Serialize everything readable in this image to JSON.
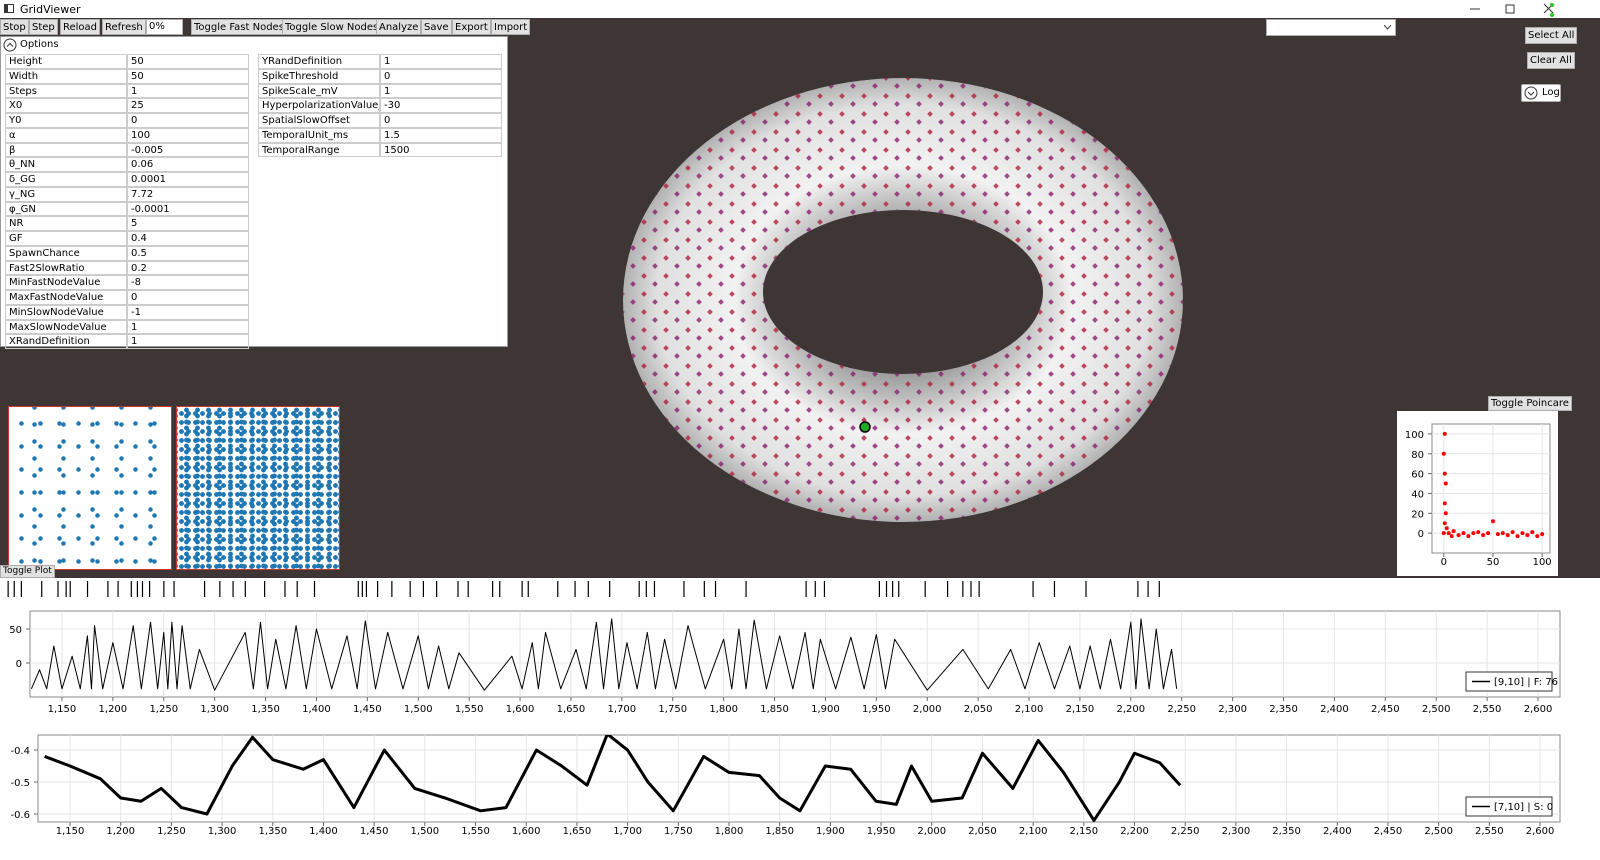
{
  "window": {
    "title": "GridViewer"
  },
  "toolbar": {
    "buttons": [
      "Stop",
      "Step",
      "Reload",
      "Refresh",
      "Toggle Fast Nodes",
      "Toggle Slow Nodes",
      "Analyze",
      "Save",
      "Export",
      "Import"
    ],
    "progress": "0%"
  },
  "side_buttons": [
    "Select All",
    "Clear All"
  ],
  "log_toggle": "Log",
  "options": {
    "header": "Options",
    "left_rows": [
      [
        "Height",
        "50"
      ],
      [
        "Width",
        "50"
      ],
      [
        "Steps",
        "1"
      ],
      [
        "X0",
        "25"
      ],
      [
        "Y0",
        "0"
      ],
      [
        "α",
        "100"
      ],
      [
        "β",
        "-0.005"
      ],
      [
        "θ_NN",
        "0.06"
      ],
      [
        "δ_GG",
        "0.0001"
      ],
      [
        "γ_NG",
        "7.72"
      ],
      [
        "φ_GN",
        "-0.0001"
      ],
      [
        "NR",
        "5"
      ],
      [
        "GF",
        "0.4"
      ],
      [
        "SpawnChance",
        "0.5"
      ],
      [
        "Fast2SlowRatio",
        "0.2"
      ],
      [
        "MinFastNodeValue",
        "-8"
      ],
      [
        "MaxFastNodeValue",
        "0"
      ],
      [
        "MinSlowNodeValue",
        "-1"
      ],
      [
        "MaxSlowNodeValue",
        "1"
      ],
      [
        "XRandDefinition",
        "1"
      ]
    ],
    "right_rows": [
      [
        "YRandDefinition",
        "1"
      ],
      [
        "SpikeThreshold",
        "0"
      ],
      [
        "SpikeScale_mV",
        "1"
      ],
      [
        "HyperpolarizationValue_mV",
        "-30"
      ],
      [
        "SpatialSlowOffset",
        "0"
      ],
      [
        "TemporalUnit_ms",
        "1.5"
      ],
      [
        "TemporalRange",
        "1500"
      ]
    ]
  },
  "toggle_poincare": "Toggle Poincare",
  "toggle_plot": "Toggle Plot",
  "chart_data": [
    {
      "type": "raster",
      "color": "#000000",
      "xlim": [
        1089,
        2661
      ],
      "x": [
        1097,
        1103,
        1110,
        1130,
        1146,
        1154,
        1158,
        1175,
        1195,
        1205,
        1218,
        1224,
        1229,
        1236,
        1250,
        1260,
        1290,
        1305,
        1318,
        1330,
        1349,
        1369,
        1381,
        1398,
        1441,
        1445,
        1449,
        1460,
        1474,
        1492,
        1505,
        1518,
        1539,
        1549,
        1573,
        1580,
        1602,
        1608,
        1637,
        1654,
        1667,
        1688,
        1717,
        1724,
        1732,
        1761,
        1781,
        1792,
        1822,
        1881,
        1890,
        1899,
        1953,
        1960,
        1966,
        1972,
        1998,
        2020,
        2035,
        2043,
        2051,
        2104,
        2125,
        2156,
        2207,
        2217,
        2228
      ]
    },
    {
      "type": "line",
      "legend": "lower right",
      "grid": true,
      "xlim": [
        1118.6,
        2621.6
      ],
      "ylim": [
        -50,
        76.5
      ],
      "yticks": [
        0,
        50
      ],
      "xticks": [
        {
          "value": 1150,
          "label": "1,150"
        },
        {
          "value": 1200,
          "label": "1,200"
        },
        {
          "value": 1250,
          "label": "1,250"
        },
        {
          "value": 1300,
          "label": "1,300"
        },
        {
          "value": 1350,
          "label": "1,350"
        },
        {
          "value": 1400,
          "label": "1,400"
        },
        {
          "value": 1450,
          "label": "1,450"
        },
        {
          "value": 1500,
          "label": "1,500"
        },
        {
          "value": 1550,
          "label": "1,550"
        },
        {
          "value": 1600,
          "label": "1,600"
        },
        {
          "value": 1650,
          "label": "1,650"
        },
        {
          "value": 1700,
          "label": "1,700"
        },
        {
          "value": 1750,
          "label": "1,750"
        },
        {
          "value": 1800,
          "label": "1,800"
        },
        {
          "value": 1850,
          "label": "1,850"
        },
        {
          "value": 1900,
          "label": "1,900"
        },
        {
          "value": 1950,
          "label": "1,950"
        },
        {
          "value": 2000,
          "label": "2,000"
        },
        {
          "value": 2050,
          "label": "2,050"
        },
        {
          "value": 2100,
          "label": "2,100"
        },
        {
          "value": 2150,
          "label": "2,150"
        },
        {
          "value": 2200,
          "label": "2,200"
        },
        {
          "value": 2250,
          "label": "2,250"
        },
        {
          "value": 2300,
          "label": "2,300"
        },
        {
          "value": 2350,
          "label": "2,350"
        },
        {
          "value": 2400,
          "label": "2,400"
        },
        {
          "value": 2450,
          "label": "2,450"
        },
        {
          "value": 2500,
          "label": "2,500"
        },
        {
          "value": 2550,
          "label": "2,550"
        },
        {
          "value": 2600,
          "label": "2,600"
        }
      ],
      "x": [
        1120,
        1128,
        1135,
        1142,
        1150,
        1160,
        1168,
        1175,
        1179,
        1182,
        1190,
        1200,
        1210,
        1220,
        1228,
        1237,
        1244,
        1250,
        1254,
        1258,
        1263,
        1268,
        1276,
        1285,
        1300,
        1330,
        1338,
        1345,
        1352,
        1360,
        1370,
        1380,
        1390,
        1400,
        1415,
        1430,
        1440,
        1448,
        1458,
        1470,
        1485,
        1500,
        1510,
        1520,
        1530,
        1540,
        1565,
        1592,
        1602,
        1612,
        1618,
        1625,
        1640,
        1655,
        1665,
        1675,
        1682,
        1690,
        1697,
        1705,
        1715,
        1725,
        1733,
        1742,
        1753,
        1765,
        1782,
        1800,
        1808,
        1815,
        1822,
        1830,
        1842,
        1855,
        1868,
        1880,
        1888,
        1895,
        1910,
        1925,
        1938,
        1950,
        1959,
        1968,
        2000,
        2035,
        2060,
        2082,
        2096,
        2110,
        2125,
        2140,
        2150,
        2160,
        2170,
        2180,
        2190,
        2200,
        2205,
        2210,
        2218,
        2225,
        2232,
        2240,
        2245
      ],
      "series": [
        {
          "name": "[9,10] | F: 76",
          "color": "#000000",
          "values": [
            -38,
            -10,
            -38,
            25,
            -38,
            10,
            -38,
            40,
            -38,
            55,
            -38,
            30,
            -38,
            55,
            -38,
            60,
            -38,
            45,
            -38,
            60,
            -38,
            55,
            -38,
            20,
            -40,
            45,
            -38,
            60,
            -38,
            35,
            -38,
            55,
            -38,
            50,
            -38,
            40,
            -38,
            62,
            -38,
            45,
            -38,
            40,
            -38,
            25,
            -38,
            15,
            -40,
            10,
            -38,
            30,
            -38,
            45,
            -38,
            20,
            -38,
            60,
            -38,
            65,
            -38,
            30,
            -38,
            45,
            -38,
            35,
            -38,
            55,
            -38,
            35,
            -38,
            50,
            -38,
            63,
            -38,
            40,
            -38,
            45,
            -38,
            35,
            -38,
            38,
            -38,
            42,
            -38,
            35,
            -40,
            20,
            -38,
            20,
            -38,
            30,
            -38,
            25,
            -38,
            25,
            -38,
            35,
            -38,
            60,
            -38,
            65,
            -38,
            50,
            -38,
            20,
            -38
          ]
        }
      ]
    },
    {
      "type": "line",
      "legend": "lower right",
      "grid": true,
      "xlim": [
        1118.4,
        2619.7
      ],
      "ylim": [
        -0.625,
        -0.353
      ],
      "yticks": [
        -0.6,
        -0.5,
        -0.4
      ],
      "xticks": [
        {
          "value": 1150,
          "label": "1,150"
        },
        {
          "value": 1200,
          "label": "1,200"
        },
        {
          "value": 1250,
          "label": "1,250"
        },
        {
          "value": 1300,
          "label": "1,300"
        },
        {
          "value": 1350,
          "label": "1,350"
        },
        {
          "value": 1400,
          "label": "1,400"
        },
        {
          "value": 1450,
          "label": "1,450"
        },
        {
          "value": 1500,
          "label": "1,500"
        },
        {
          "value": 1550,
          "label": "1,550"
        },
        {
          "value": 1600,
          "label": "1,600"
        },
        {
          "value": 1650,
          "label": "1,650"
        },
        {
          "value": 1700,
          "label": "1,700"
        },
        {
          "value": 1750,
          "label": "1,750"
        },
        {
          "value": 1800,
          "label": "1,800"
        },
        {
          "value": 1850,
          "label": "1,850"
        },
        {
          "value": 1900,
          "label": "1,900"
        },
        {
          "value": 1950,
          "label": "1,950"
        },
        {
          "value": 2000,
          "label": "2,000"
        },
        {
          "value": 2050,
          "label": "2,050"
        },
        {
          "value": 2100,
          "label": "2,100"
        },
        {
          "value": 2150,
          "label": "2,150"
        },
        {
          "value": 2200,
          "label": "2,200"
        },
        {
          "value": 2250,
          "label": "2,250"
        },
        {
          "value": 2300,
          "label": "2,300"
        },
        {
          "value": 2350,
          "label": "2,350"
        },
        {
          "value": 2400,
          "label": "2,400"
        },
        {
          "value": 2450,
          "label": "2,450"
        },
        {
          "value": 2500,
          "label": "2,500"
        },
        {
          "value": 2550,
          "label": "2,550"
        },
        {
          "value": 2600,
          "label": "2,600"
        }
      ],
      "x": [
        1125,
        1150,
        1180,
        1200,
        1220,
        1240,
        1260,
        1285,
        1310,
        1330,
        1350,
        1380,
        1400,
        1430,
        1460,
        1490,
        1520,
        1555,
        1580,
        1610,
        1635,
        1660,
        1680,
        1700,
        1720,
        1745,
        1775,
        1800,
        1830,
        1850,
        1870,
        1895,
        1920,
        1945,
        1965,
        1980,
        2000,
        2030,
        2050,
        2080,
        2105,
        2130,
        2160,
        2185,
        2200,
        2225,
        2245
      ],
      "series": [
        {
          "name": "[7,10] | S: 0",
          "color": "#000000",
          "values": [
            -0.42,
            -0.45,
            -0.49,
            -0.55,
            -0.56,
            -0.52,
            -0.58,
            -0.6,
            -0.45,
            -0.36,
            -0.43,
            -0.46,
            -0.43,
            -0.58,
            -0.4,
            -0.52,
            -0.55,
            -0.59,
            -0.58,
            -0.4,
            -0.45,
            -0.51,
            -0.35,
            -0.4,
            -0.5,
            -0.59,
            -0.42,
            -0.47,
            -0.48,
            -0.55,
            -0.59,
            -0.45,
            -0.46,
            -0.56,
            -0.57,
            -0.45,
            -0.56,
            -0.55,
            -0.41,
            -0.52,
            -0.37,
            -0.47,
            -0.62,
            -0.5,
            -0.41,
            -0.44,
            -0.51
          ]
        }
      ]
    },
    {
      "type": "scatter",
      "color": "#ff0000",
      "grid": true,
      "xlim": [
        -12,
        108
      ],
      "ylim": [
        -20,
        110
      ],
      "xticks": [
        0,
        50,
        100
      ],
      "yticks": [
        0,
        20,
        40,
        60,
        80,
        100
      ],
      "x": [
        0,
        1,
        1,
        1,
        0,
        1,
        2,
        2,
        3,
        5,
        8,
        10,
        15,
        20,
        25,
        30,
        35,
        40,
        45,
        50,
        55,
        60,
        65,
        70,
        75,
        80,
        85,
        90,
        95,
        100
      ],
      "values": [
        0,
        10,
        30,
        60,
        80,
        100,
        50,
        20,
        5,
        0,
        -3,
        2,
        -2,
        0,
        -3,
        0,
        1,
        -2,
        0,
        12,
        -1,
        0,
        -2,
        1,
        -3,
        0,
        -2,
        1,
        -3,
        -1
      ]
    }
  ]
}
